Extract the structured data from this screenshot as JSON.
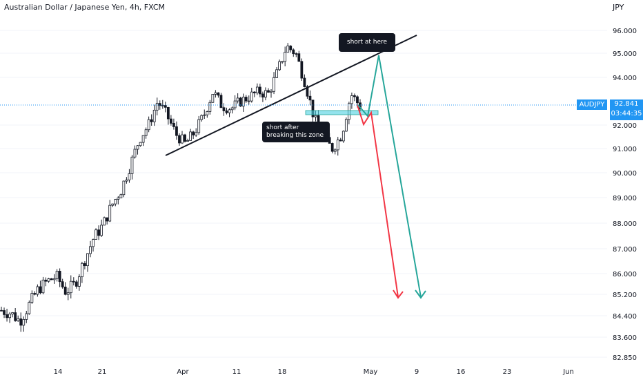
{
  "header": {
    "title": "Australian Dollar / Japanese Yen, 4h, FXCM",
    "currency": "JPY"
  },
  "price_badges": {
    "symbol": "AUDJPY",
    "last_price": "92.841",
    "countdown": "03:44:35"
  },
  "annotations": {
    "callout_top": "short at here",
    "callout_mid_line1": "short after",
    "callout_mid_line2": "breaking this zone"
  },
  "colors": {
    "candle": "#131722",
    "trendline": "#131722",
    "price_line": "#2196f3",
    "zone": "#4dd0e1",
    "arrow_red": "#f23645",
    "arrow_green": "#26a69a",
    "axis_text": "#131722",
    "badge": "#2196f3"
  },
  "chart_data": {
    "type": "candlestick",
    "title": "Australian Dollar / Japanese Yen, 4h, FXCM",
    "y_axis": {
      "ticks": [
        "96.000",
        "95.000",
        "94.000",
        "92.000",
        "91.000",
        "90.000",
        "89.000",
        "88.000",
        "87.000",
        "86.000",
        "85.200",
        "84.400",
        "83.600",
        "82.850"
      ],
      "ylim": [
        82.85,
        96.5
      ]
    },
    "x_axis": {
      "ticks": [
        "14",
        "21",
        "Apr",
        "11",
        "18",
        "May",
        "9",
        "16",
        "23",
        "Jun"
      ]
    },
    "last_price": 92.841,
    "closes_approx": [
      84.6,
      84.5,
      84.2,
      84.8,
      85.4,
      85.7,
      85.9,
      85.3,
      85.6,
      86.5,
      87.4,
      87.9,
      88.7,
      89.3,
      90.3,
      91.4,
      92.0,
      93.0,
      92.4,
      91.6,
      91.2,
      91.7,
      92.4,
      93.4,
      92.8,
      92.7,
      93.0,
      93.2,
      93.4,
      93.3,
      94.2,
      95.3,
      95.0,
      93.8,
      92.3,
      91.4,
      91.0,
      91.6,
      93.3,
      92.8
    ]
  }
}
